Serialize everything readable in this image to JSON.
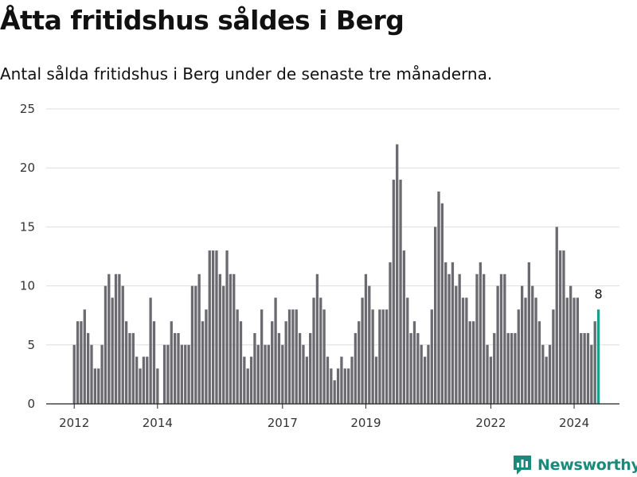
{
  "title": "Åtta fritidshus såldes i Berg",
  "subtitle": "Antal sålda fritidshus i Berg under de senaste tre månaderna.",
  "brand": {
    "name": "Newsworthy",
    "icon": "bar-chart-logo-icon",
    "color": "#1a8a7a"
  },
  "chart_data": {
    "type": "bar",
    "title": "Åtta fritidshus såldes i Berg",
    "subtitle": "Antal sålda fritidshus i Berg under de senaste tre månaderna.",
    "x_start": "2012-01",
    "x_tick_labels": [
      "2012",
      "2014",
      "2017",
      "2019",
      "2022",
      "2024"
    ],
    "y_tick_labels": [
      "0",
      "5",
      "10",
      "15",
      "20",
      "25"
    ],
    "ylim": [
      0,
      25
    ],
    "grid": true,
    "legend": "none",
    "colors": {
      "bar": "#6b6a70",
      "highlight": "#1a9e8f",
      "grid": "#dddddd",
      "axis": "#222222"
    },
    "highlight_label": "8",
    "values": [
      5,
      7,
      7,
      8,
      6,
      5,
      3,
      3,
      5,
      10,
      11,
      9,
      11,
      11,
      10,
      7,
      6,
      6,
      4,
      3,
      4,
      4,
      9,
      7,
      3,
      0,
      5,
      5,
      7,
      6,
      6,
      5,
      5,
      5,
      10,
      10,
      11,
      7,
      8,
      13,
      13,
      13,
      11,
      10,
      13,
      11,
      11,
      8,
      7,
      4,
      3,
      4,
      6,
      5,
      8,
      5,
      5,
      7,
      9,
      6,
      5,
      7,
      8,
      8,
      8,
      6,
      5,
      4,
      6,
      9,
      11,
      9,
      8,
      4,
      3,
      2,
      3,
      4,
      3,
      3,
      4,
      6,
      7,
      9,
      11,
      10,
      8,
      4,
      8,
      8,
      8,
      12,
      19,
      22,
      19,
      13,
      9,
      6,
      7,
      6,
      5,
      4,
      5,
      8,
      15,
      18,
      17,
      12,
      11,
      12,
      10,
      11,
      9,
      9,
      7,
      7,
      11,
      12,
      11,
      5,
      4,
      6,
      10,
      11,
      11,
      6,
      6,
      6,
      8,
      10,
      9,
      12,
      10,
      9,
      7,
      5,
      4,
      5,
      8,
      15,
      13,
      13,
      9,
      10,
      9,
      9,
      6,
      6,
      6,
      5,
      7,
      8
    ]
  }
}
